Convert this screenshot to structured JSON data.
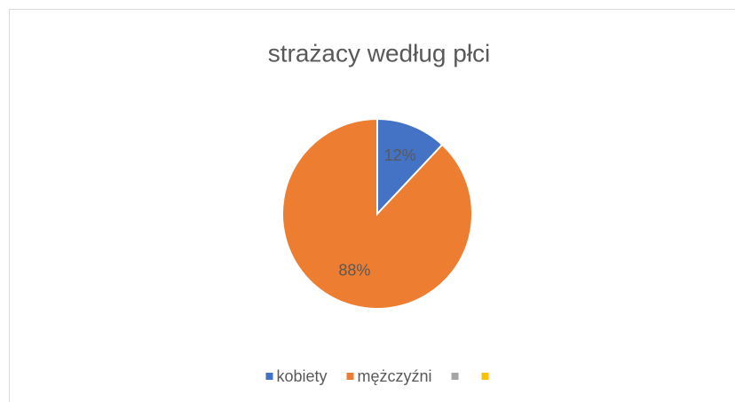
{
  "chart_data": {
    "type": "pie",
    "title": "strażacy według płci",
    "categories": [
      "kobiety",
      "mężczyźni",
      null,
      null
    ],
    "values": [
      12,
      88,
      0,
      0
    ],
    "value_labels": [
      "12%",
      "88%",
      null,
      null
    ],
    "colors": [
      "#4472c4",
      "#ed7d31",
      "#a5a5a5",
      "#ffc000"
    ],
    "legend": "bottom"
  }
}
